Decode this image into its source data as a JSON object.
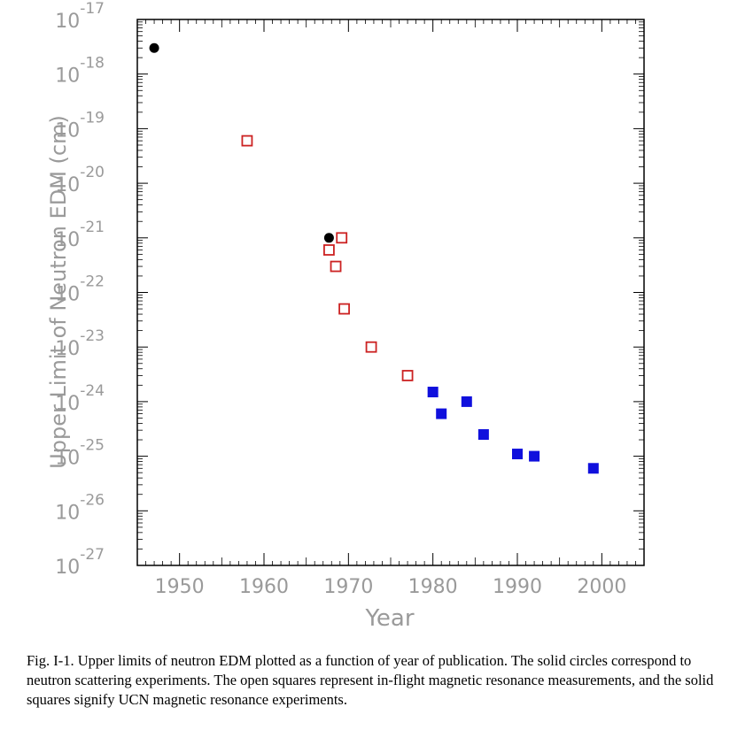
{
  "chart_data": {
    "type": "scatter",
    "x_label": "Year",
    "y_label": "Upper Limit of Neutron EDM (cm)",
    "x_range": [
      1945,
      2005
    ],
    "y_range": [
      1e-27,
      1e-17
    ],
    "y_scale": "log",
    "x_ticks": [
      1950,
      1960,
      1970,
      1980,
      1990,
      2000
    ],
    "y_ticks": [
      {
        "base": "10",
        "exp": "-17"
      },
      {
        "base": "10",
        "exp": "-18"
      },
      {
        "base": "10",
        "exp": "-19"
      },
      {
        "base": "10",
        "exp": "-20"
      },
      {
        "base": "10",
        "exp": "-21"
      },
      {
        "base": "10",
        "exp": "-22"
      },
      {
        "base": "10",
        "exp": "-23"
      },
      {
        "base": "10",
        "exp": "-24"
      },
      {
        "base": "10",
        "exp": "-25"
      },
      {
        "base": "10",
        "exp": "-26"
      },
      {
        "base": "10",
        "exp": "-27"
      }
    ],
    "series": [
      {
        "marker": "circle-solid",
        "color": "#000000",
        "points": [
          [
            1947,
            3e-18
          ],
          [
            1967.7,
            1e-21
          ]
        ]
      },
      {
        "marker": "square-open",
        "color": "#cc2222",
        "points": [
          [
            1958,
            6e-20
          ],
          [
            1967.7,
            6e-22
          ],
          [
            1968.5,
            3e-22
          ],
          [
            1969.2,
            1e-21
          ],
          [
            1969.5,
            5e-23
          ],
          [
            1972.7,
            1e-23
          ],
          [
            1977,
            3e-24
          ]
        ]
      },
      {
        "marker": "square-solid",
        "color": "#1010dd",
        "points": [
          [
            1980,
            1.5e-24
          ],
          [
            1981,
            6e-25
          ],
          [
            1984,
            1e-24
          ],
          [
            1986,
            2.5e-25
          ],
          [
            1990,
            1.1e-25
          ],
          [
            1992,
            1e-25
          ],
          [
            1999,
            6e-26
          ]
        ]
      }
    ]
  },
  "caption": "Fig. I-1.  Upper limits of neutron EDM plotted as a function of year of publication.  The solid circles correspond to neutron scattering experiments.  The open squares represent in-flight magnetic resonance measurements, and the solid squares signify UCN magnetic resonance experiments."
}
